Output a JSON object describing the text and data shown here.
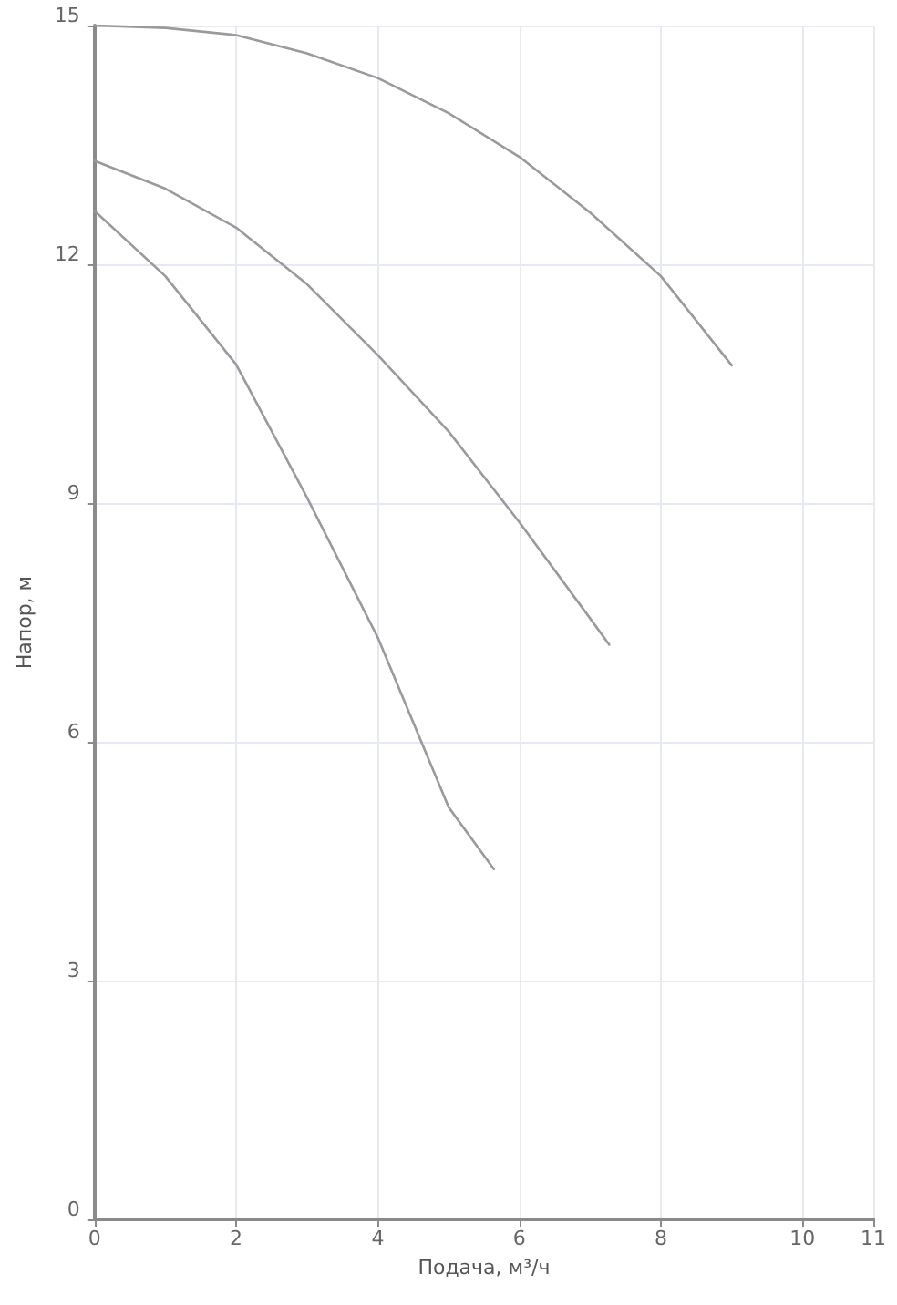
{
  "chart_data": {
    "type": "line",
    "xlabel": "Подача, м³/ч",
    "ylabel": "Напор, м",
    "xlim": [
      0,
      11
    ],
    "ylim": [
      0,
      15
    ],
    "xticks": [
      0,
      2,
      4,
      6,
      8,
      10,
      11
    ],
    "yticks": [
      0,
      3,
      6,
      9,
      12,
      15
    ],
    "grid": true,
    "marker": "none",
    "line_style": "solid",
    "series": [
      {
        "color": "#9a9a9a",
        "x": [
          0,
          1,
          2,
          3,
          4,
          5,
          6,
          7,
          8,
          9
        ],
        "values": [
          15,
          14.97,
          14.88,
          14.65,
          14.34,
          13.9,
          13.35,
          12.65,
          11.85,
          10.73
        ]
      },
      {
        "color": "#9a9a9a",
        "x": [
          0,
          1,
          2,
          3,
          4,
          5,
          6,
          7,
          7.27
        ],
        "values": [
          13.3,
          12.95,
          12.46,
          11.75,
          10.86,
          9.9,
          8.76,
          7.55,
          7.22
        ]
      },
      {
        "color": "#9a9a9a",
        "x": [
          0,
          1,
          2,
          3,
          4,
          5,
          5.64
        ],
        "values": [
          12.67,
          11.85,
          10.74,
          9.07,
          7.31,
          5.18,
          4.4
        ]
      }
    ]
  }
}
